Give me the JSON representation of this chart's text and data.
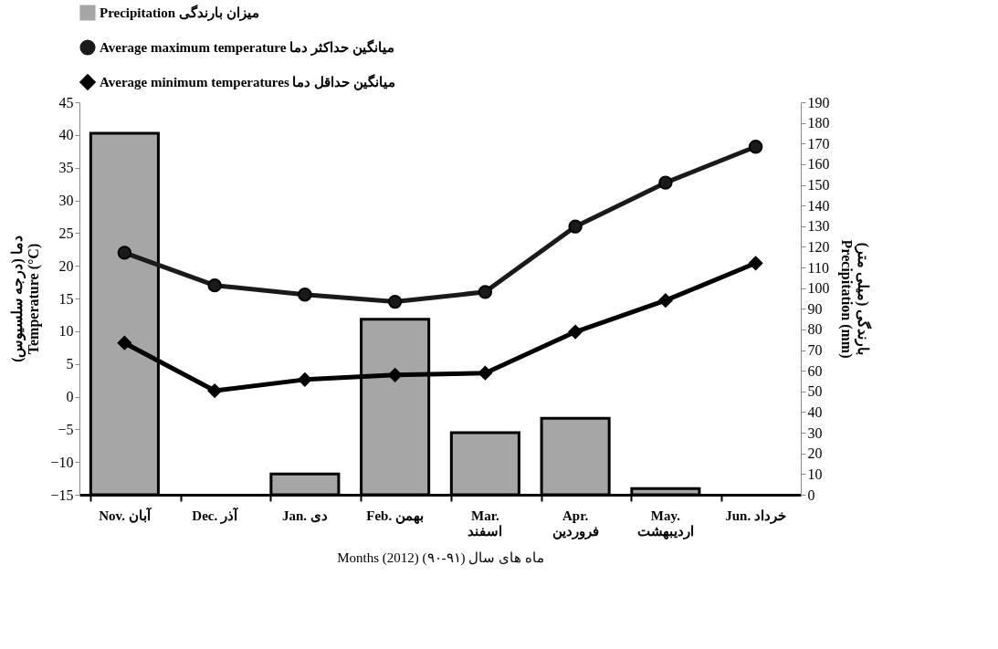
{
  "chart_data": {
    "type": "bar",
    "categories": [
      "Nov. آبان",
      "Dec. آذر",
      "Jan. دی",
      "Feb. بهمن",
      "Mar.\nاسفند",
      "Apr.\nفروردین",
      "May.\nاردیبهشت",
      "Jun. خرداد"
    ],
    "xlabel": "Months (2012)          ماه های سال (۹۱-۹۰)",
    "ylabel": "دما (درجه سلسیوس)\nTemperature (°C)",
    "y2label": "بارندگی (میلی متر)\nPrecipitation (mm)",
    "ylim": [
      -15,
      45
    ],
    "yticks": [
      -15,
      -10,
      -5,
      0,
      5,
      10,
      15,
      20,
      25,
      30,
      35,
      40,
      45
    ],
    "y2lim": [
      0,
      190
    ],
    "y2ticks": [
      0,
      10,
      20,
      30,
      40,
      50,
      60,
      70,
      80,
      90,
      100,
      110,
      120,
      130,
      140,
      150,
      160,
      170,
      180,
      190
    ],
    "grid": false,
    "legend": "top",
    "series": [
      {
        "name": "Precipitation          میزان بارندگی",
        "axis": "y2",
        "color": "#a6a6a6",
        "values": [
          175,
          0,
          10,
          85,
          30,
          37,
          3,
          0
        ]
      },
      {
        "name": "Average maximum temperature      میانگین حداکثر دما",
        "type": "line",
        "marker": "circle",
        "color": "#1a1a1a",
        "values": [
          22,
          17,
          15.6,
          14.5,
          16,
          26,
          32.7,
          38.2
        ]
      },
      {
        "name": "Average minimum  temperatures    میانگین حداقل دما",
        "type": "line",
        "marker": "diamond",
        "color": "#000000",
        "values": [
          8.2,
          0.9,
          2.6,
          3.3,
          3.6,
          9.9,
          14.7,
          20.4
        ]
      }
    ]
  }
}
